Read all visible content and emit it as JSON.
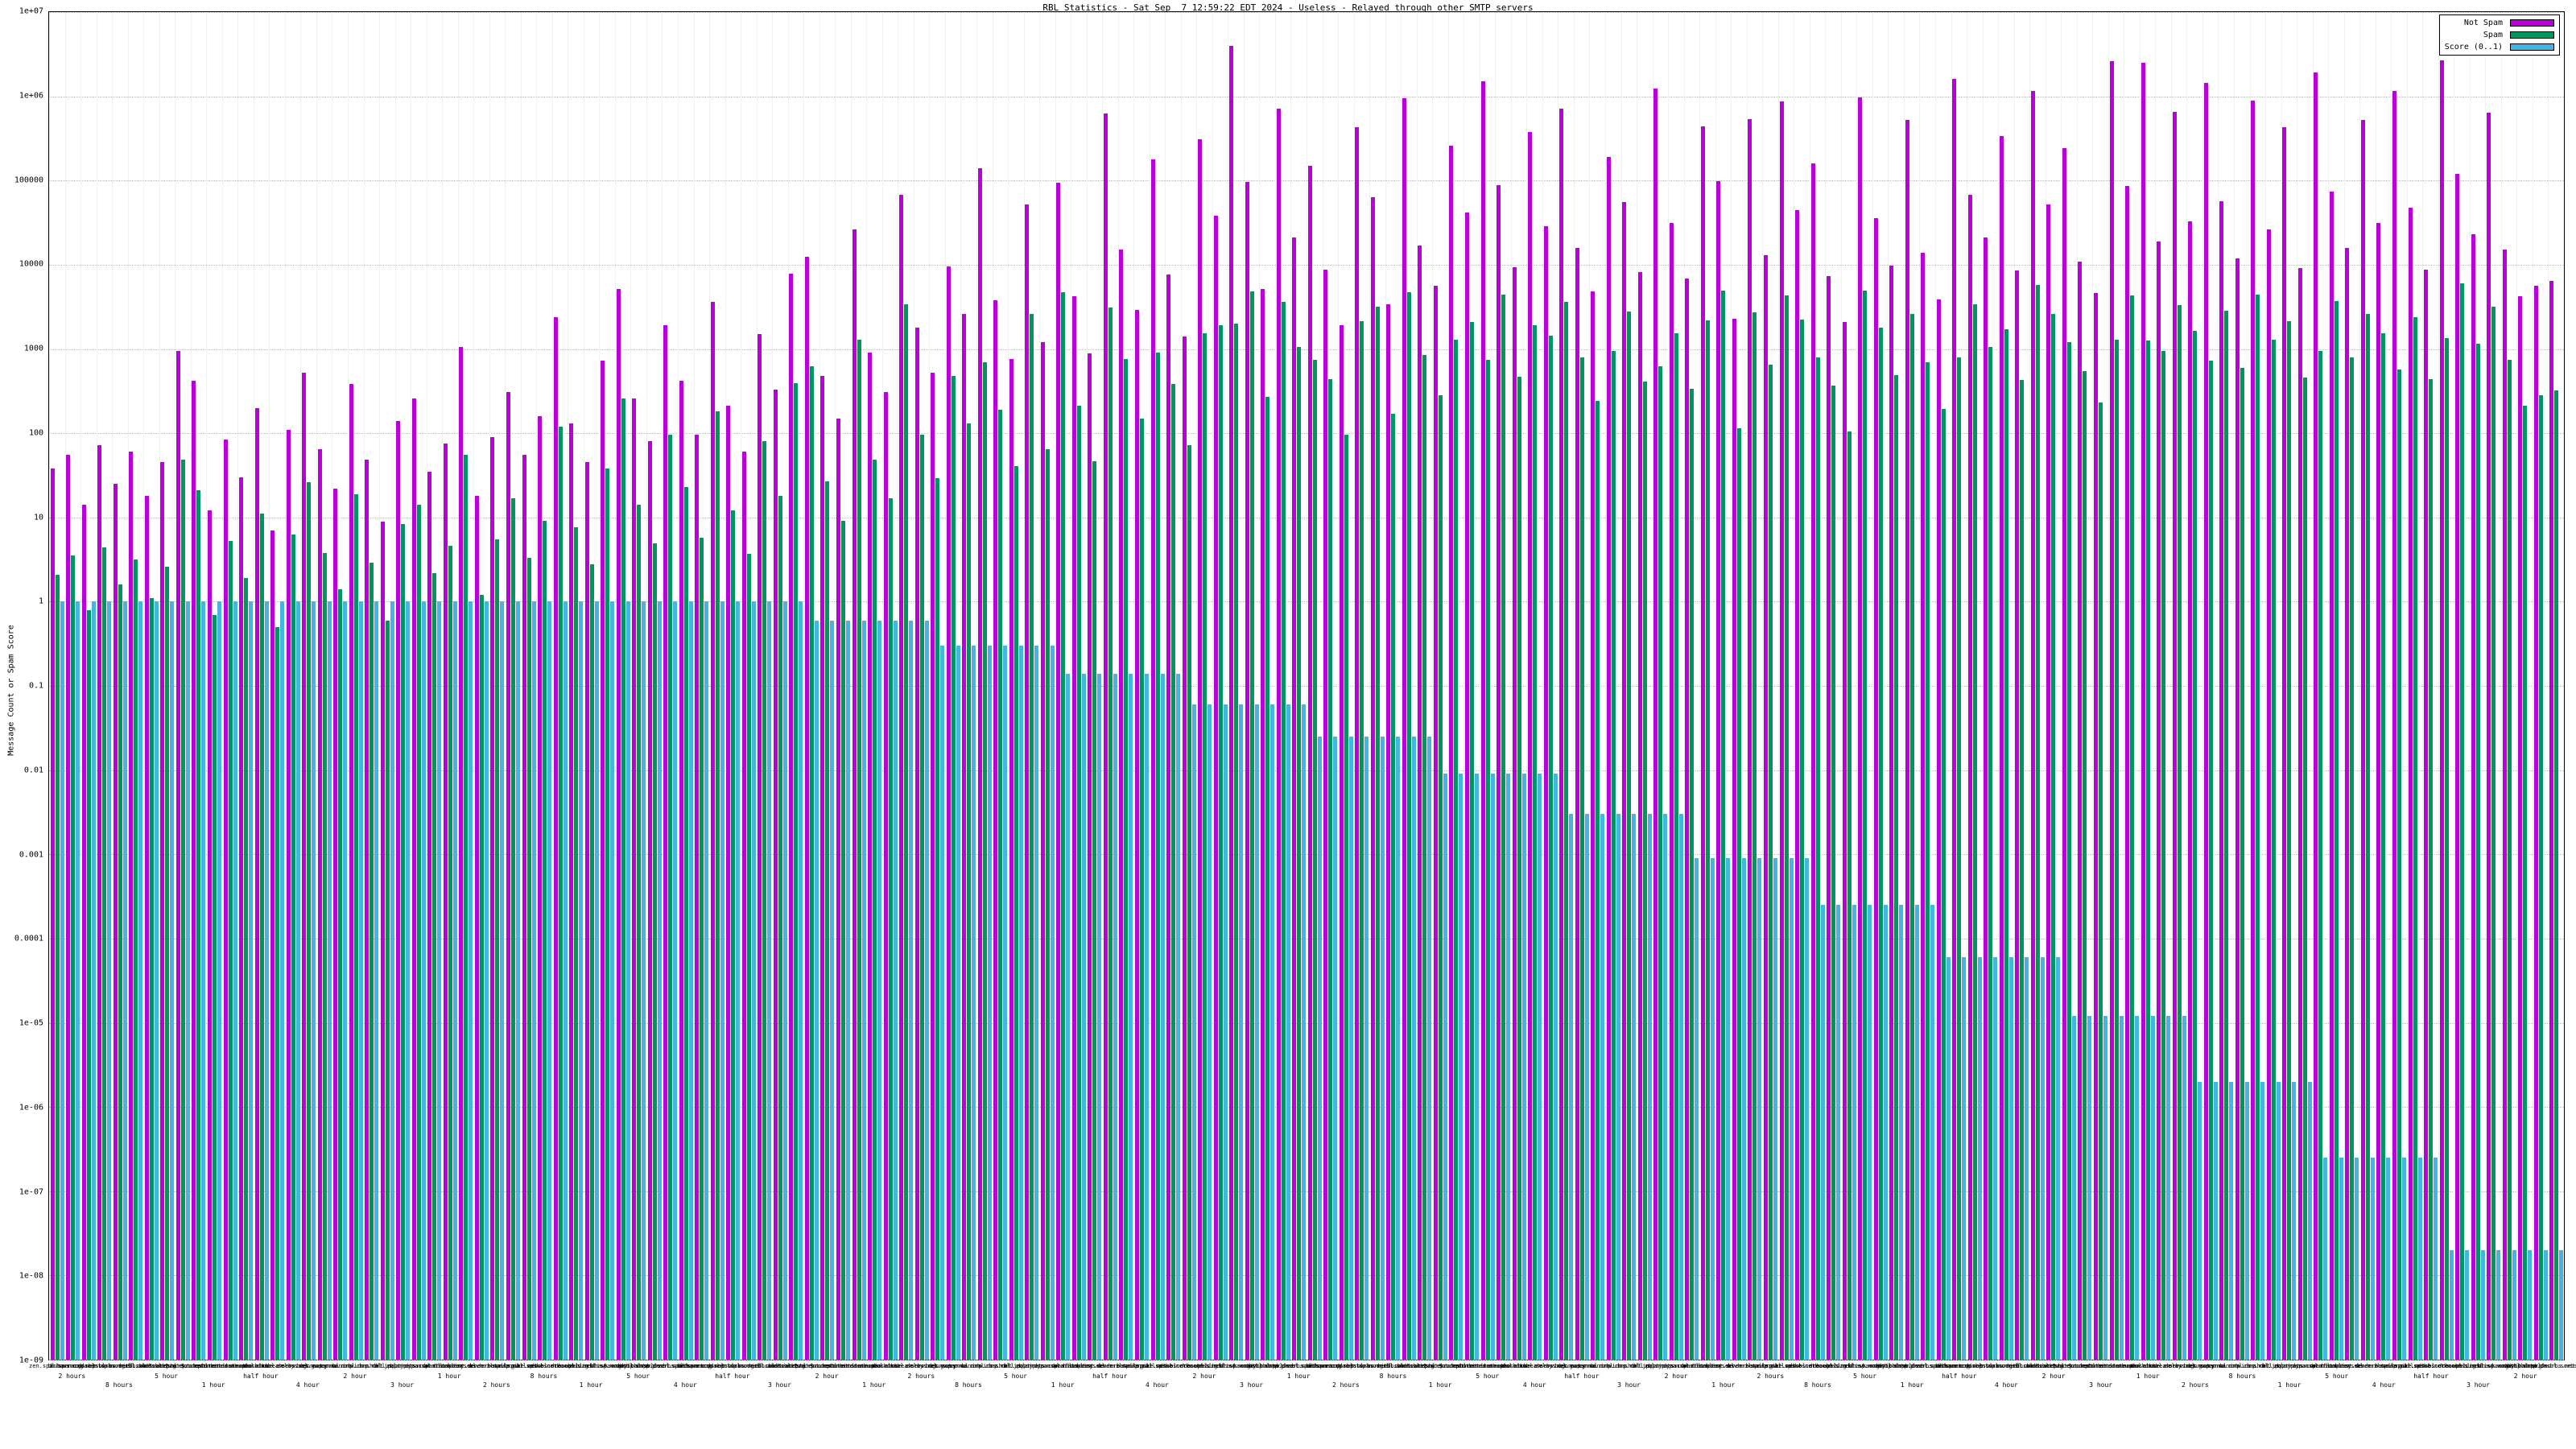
{
  "legend": [
    {
      "label": "Not Spam",
      "color": "#b800d8"
    },
    {
      "label": "Spam",
      "color": "#00945e"
    },
    {
      "label": "Score (0..1)",
      "color": "#45b4e0"
    }
  ],
  "chart_data": {
    "type": "bar",
    "title": "RBL Statistics - Sat Sep  7 12:59:22 EDT 2024 - Useless - Relayed through other SMTP servers",
    "ylabel": "Message Count or Spam Score",
    "xlabel": "",
    "yscale": "log",
    "ylim": [
      1e-09,
      10000000.0
    ],
    "grid": true,
    "legend_position": "top-right",
    "series_names": [
      "Not Spam",
      "Spam",
      "Score (0..1)"
    ],
    "yticks": [
      {
        "v": 1e-09,
        "label": "1e-09"
      },
      {
        "v": 1e-08,
        "label": "1e-08"
      },
      {
        "v": 1e-07,
        "label": "1e-07"
      },
      {
        "v": 1e-06,
        "label": "1e-06"
      },
      {
        "v": 1e-05,
        "label": "1e-05"
      },
      {
        "v": 0.0001,
        "label": "0.0001"
      },
      {
        "v": 0.001,
        "label": "0.001"
      },
      {
        "v": 0.01,
        "label": "0.01"
      },
      {
        "v": 0.1,
        "label": "0.1"
      },
      {
        "v": 1,
        "label": "1"
      },
      {
        "v": 10,
        "label": "10"
      },
      {
        "v": 100,
        "label": "100"
      },
      {
        "v": 1000,
        "label": "1000"
      },
      {
        "v": 10000,
        "label": "10000"
      },
      {
        "v": 100000,
        "label": "100000"
      },
      {
        "v": 1000000,
        "label": "1e+06"
      },
      {
        "v": 10000000,
        "label": "1e+07"
      }
    ],
    "hosts": [
      "zen.spamhaus.org",
      "bl.spamcop.net",
      "b.barracudacentral.org",
      "dnsbl.sorbs.net",
      "psbl.surriel.com",
      "spam.dnsbl.sorbs.net",
      "cbl.abuseat.org",
      "dnsbl-1.uceprotect.net",
      "dnsbl-2.uceprotect.net",
      "dnsbl-3.uceprotect.net",
      "ix.dnsbl.manitu.net",
      "combined.abuse.ch",
      "drone.abuse.ch",
      "spam.abuse.ch",
      "dul.dnsbl.sorbs.net",
      "korea.services.net",
      "relays.bl.gweep.ca",
      "bogons.cymru.com",
      "spamrbl.imp.ch",
      "wormrbl.imp.ch",
      "virus.rbl.jp",
      "short.rbl.jp",
      "all.spamrats.com",
      "noptr.spamrats.com",
      "dyna.spamrats.com",
      "bl.blocklist.de",
      "rbl.interserver.net",
      "query.senderbase.org",
      "bl.mailspike.net",
      "z.mailspike.net",
      "rep.mailspike.net",
      "ubl.unsubscore.com",
      "dnsbl.dronebl.org",
      "db.wpbl.info",
      "access.redhawk.org",
      "blacklist.woody.ch",
      "bl.spamcannibal.org",
      "dnsbl.inps.de",
      "http.dnsbl.sorbs.net",
      "smtp.dnsbl.sorbs.net"
    ],
    "times": [
      "2 hours",
      "8 hours",
      "5 hour",
      "1 hour",
      "half hour",
      "4 hour",
      "2 hour",
      "3 hour",
      "1 hour",
      "2 hours",
      "8 hours",
      "1 hour",
      "5 hour",
      "4 hour",
      "half hour",
      "3 hour",
      "2 hour",
      "1 hour"
    ],
    "not_spam": [
      38,
      55,
      14,
      72,
      25,
      60,
      18,
      45,
      950,
      420,
      12,
      85,
      30,
      200,
      7,
      110,
      520,
      65,
      22,
      380,
      48,
      9,
      140,
      260,
      35,
      75,
      1050,
      18,
      90,
      310,
      55,
      160,
      2400,
      130,
      45,
      720,
      5200,
      260,
      80,
      1900,
      420,
      95,
      3600,
      210,
      60,
      1500,
      330,
      7800,
      12500,
      480,
      150,
      26000,
      900,
      310,
      68000,
      1800,
      520,
      9500,
      2600,
      140000,
      3800,
      760,
      52000,
      1200,
      95000,
      4200,
      880,
      620000,
      15000,
      2900,
      180000,
      7600,
      1400,
      310000,
      38000,
      4000000,
      96000,
      5200,
      720000,
      21000,
      150000,
      8800,
      1900,
      430000,
      64000,
      3400,
      950000,
      17000,
      5600,
      260000,
      42000,
      1500000,
      88000,
      9400,
      380000,
      29000,
      720000,
      16000,
      4800,
      190000,
      56000,
      8200,
      1250000,
      31000,
      6800,
      440000,
      98000,
      2300,
      540000,
      13000,
      870000,
      45000,
      160000,
      7400,
      2100,
      980000,
      36000,
      9800,
      520000,
      14000,
      3900,
      1600000,
      68000,
      21000,
      340000,
      8600,
      1150000,
      52000,
      240000,
      11000,
      4600,
      2600000,
      86000,
      2500000,
      19000,
      660000,
      33000,
      1450000,
      57000,
      12000,
      890000,
      26000,
      430000,
      9200,
      1900000,
      74000,
      16000,
      520000,
      31000,
      1150000,
      48000,
      8800,
      2700000,
      120000,
      23000,
      640000,
      15000,
      4200,
      5600,
      6400
    ],
    "spam": [
      2.1,
      3.5,
      0.8,
      4.4,
      1.6,
      3.2,
      1.1,
      2.6,
      48,
      21,
      0.7,
      5.2,
      1.9,
      11,
      0.5,
      6.3,
      26,
      3.8,
      1.4,
      19,
      2.9,
      0.6,
      8.4,
      14,
      2.2,
      4.6,
      55,
      1.2,
      5.5,
      17,
      3.3,
      9.1,
      120,
      7.6,
      2.8,
      38,
      260,
      14,
      4.9,
      95,
      23,
      5.8,
      180,
      12,
      3.7,
      80,
      18,
      390,
      620,
      27,
      9.2,
      1300,
      48,
      17,
      3400,
      95,
      29,
      480,
      130,
      700,
      190,
      41,
      2600,
      64,
      4700,
      210,
      46,
      3100,
      760,
      150,
      900,
      380,
      72,
      1550,
      1900,
      2000,
      4800,
      270,
      3600,
      1050,
      750,
      440,
      95,
      2150,
      3200,
      170,
      4750,
      850,
      280,
      1300,
      2100,
      750,
      4400,
      470,
      1900,
      1450,
      3600,
      800,
      240,
      950,
      2800,
      410,
      625,
      1550,
      340,
      2200,
      4900,
      115,
      2700,
      650,
      4350,
      2250,
      800,
      370,
      105,
      4900,
      1800,
      490,
      2600,
      700,
      195,
      800,
      3400,
      1050,
      1700,
      430,
      5750,
      2600,
      1200,
      550,
      230,
      1300,
      4300,
      1250,
      950,
      3300,
      1650,
      725,
      2850,
      600,
      4450,
      1300,
      2150,
      460,
      950,
      3700,
      800,
      2600,
      1550,
      575,
      2400,
      440,
      1350,
      6000,
      1150,
      3200,
      750,
      210,
      280,
      320
    ],
    "score": [
      1,
      1,
      1,
      1,
      1,
      1,
      1,
      1,
      1,
      1,
      1,
      1,
      1,
      1,
      1,
      1,
      1,
      1,
      1,
      1,
      1,
      1,
      1,
      1,
      1,
      1,
      1,
      1,
      1,
      1,
      1,
      1,
      1,
      1,
      1,
      1,
      1,
      1,
      1,
      1,
      1,
      1,
      1,
      1,
      1,
      1,
      1,
      1,
      0.6,
      0.6,
      0.6,
      0.6,
      0.6,
      0.6,
      0.6,
      0.6,
      0.3,
      0.3,
      0.3,
      0.3,
      0.3,
      0.3,
      0.3,
      0.3,
      0.14,
      0.14,
      0.14,
      0.14,
      0.14,
      0.14,
      0.14,
      0.14,
      0.06,
      0.06,
      0.06,
      0.06,
      0.06,
      0.06,
      0.06,
      0.06,
      0.025,
      0.025,
      0.025,
      0.025,
      0.025,
      0.025,
      0.025,
      0.025,
      0.009,
      0.009,
      0.009,
      0.009,
      0.009,
      0.009,
      0.009,
      0.009,
      0.003,
      0.003,
      0.003,
      0.003,
      0.003,
      0.003,
      0.003,
      0.003,
      0.0009,
      0.0009,
      0.0009,
      0.0009,
      0.0009,
      0.0009,
      0.0009,
      0.0009,
      0.00025,
      0.00025,
      0.00025,
      0.00025,
      0.00025,
      0.00025,
      0.00025,
      0.00025,
      6e-05,
      6e-05,
      6e-05,
      6e-05,
      6e-05,
      6e-05,
      6e-05,
      6e-05,
      1.2e-05,
      1.2e-05,
      1.2e-05,
      1.2e-05,
      1.2e-05,
      1.2e-05,
      1.2e-05,
      1.2e-05,
      2e-06,
      2e-06,
      2e-06,
      2e-06,
      2e-06,
      2e-06,
      2e-06,
      2e-06,
      2.5e-07,
      2.5e-07,
      2.5e-07,
      2.5e-07,
      2.5e-07,
      2.5e-07,
      2.5e-07,
      2.5e-07,
      2e-08,
      2e-08,
      2e-08,
      2e-08,
      2e-08,
      2e-08,
      2e-08,
      2e-08
    ]
  }
}
